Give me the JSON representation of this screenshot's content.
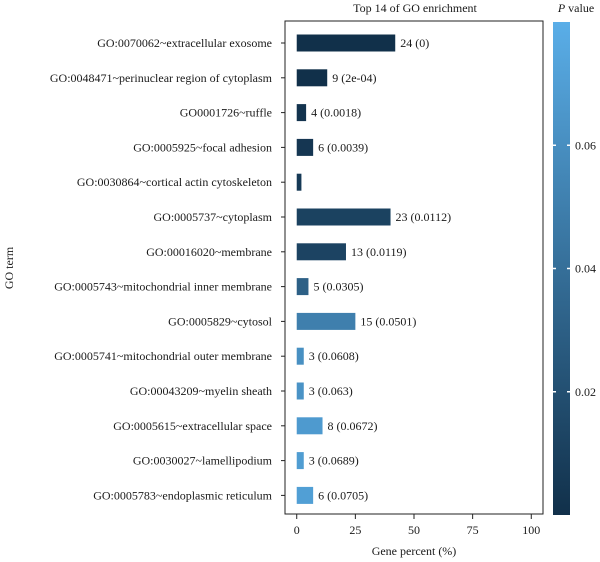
{
  "chart_data": {
    "type": "bar",
    "orientation": "horizontal",
    "title": "Top 14 of GO enrichment",
    "xlabel": "Gene percent (%)",
    "ylabel": "GO term",
    "xlim": [
      -5,
      105
    ],
    "xticks": [
      0,
      25,
      50,
      75,
      100
    ],
    "categories": [
      "GO:0070062~extracellular exosome",
      "GO:0048471~perinuclear region of cytoplasm",
      "GO0001726~ruffle",
      "GO:0005925~focal adhesion",
      "GO:0030864~cortical actin cytoskeleton",
      "GO:0005737~cytoplasm",
      "GO:00016020~membrane",
      "GO:0005743~mitochondrial inner membrane",
      "GO:0005829~cytosol",
      "GO:0005741~mitochondrial outer membrane",
      "GO:00043209~myelin sheath",
      "GO:0005615~extracellular space",
      "GO:0030027~lamellipodium",
      "GO:0005783~endoplasmic reticulum"
    ],
    "values": [
      42,
      13,
      4,
      7,
      2,
      40,
      21,
      5,
      25,
      3,
      3,
      11,
      3,
      7
    ],
    "p_values": [
      0,
      0.0002,
      0.0018,
      0.0039,
      0.006,
      0.0112,
      0.0119,
      0.0305,
      0.0501,
      0.0608,
      0.063,
      0.0672,
      0.0689,
      0.0705
    ],
    "bar_labels": [
      "24 (0)",
      "9 (2e-04)",
      "4 (0.0018)",
      "6 (0.0039)",
      "",
      "23 (0.0112)",
      "13 (0.0119)",
      "5 (0.0305)",
      "15 (0.0501)",
      "3 (0.0608)",
      "3 (0.063)",
      "8 (0.0672)",
      "3 (0.0689)",
      "6 (0.0705)"
    ],
    "colorbar": {
      "label_italic": "P",
      "label_rest": " value",
      "range": [
        0,
        0.08
      ],
      "ticks": [
        0.02,
        0.04,
        0.06
      ],
      "tick_labels": [
        "0.02",
        "0.04",
        "0.06"
      ],
      "color_low": "#11304a",
      "color_high": "#5aaee8"
    },
    "grid": false,
    "legend": "right"
  }
}
